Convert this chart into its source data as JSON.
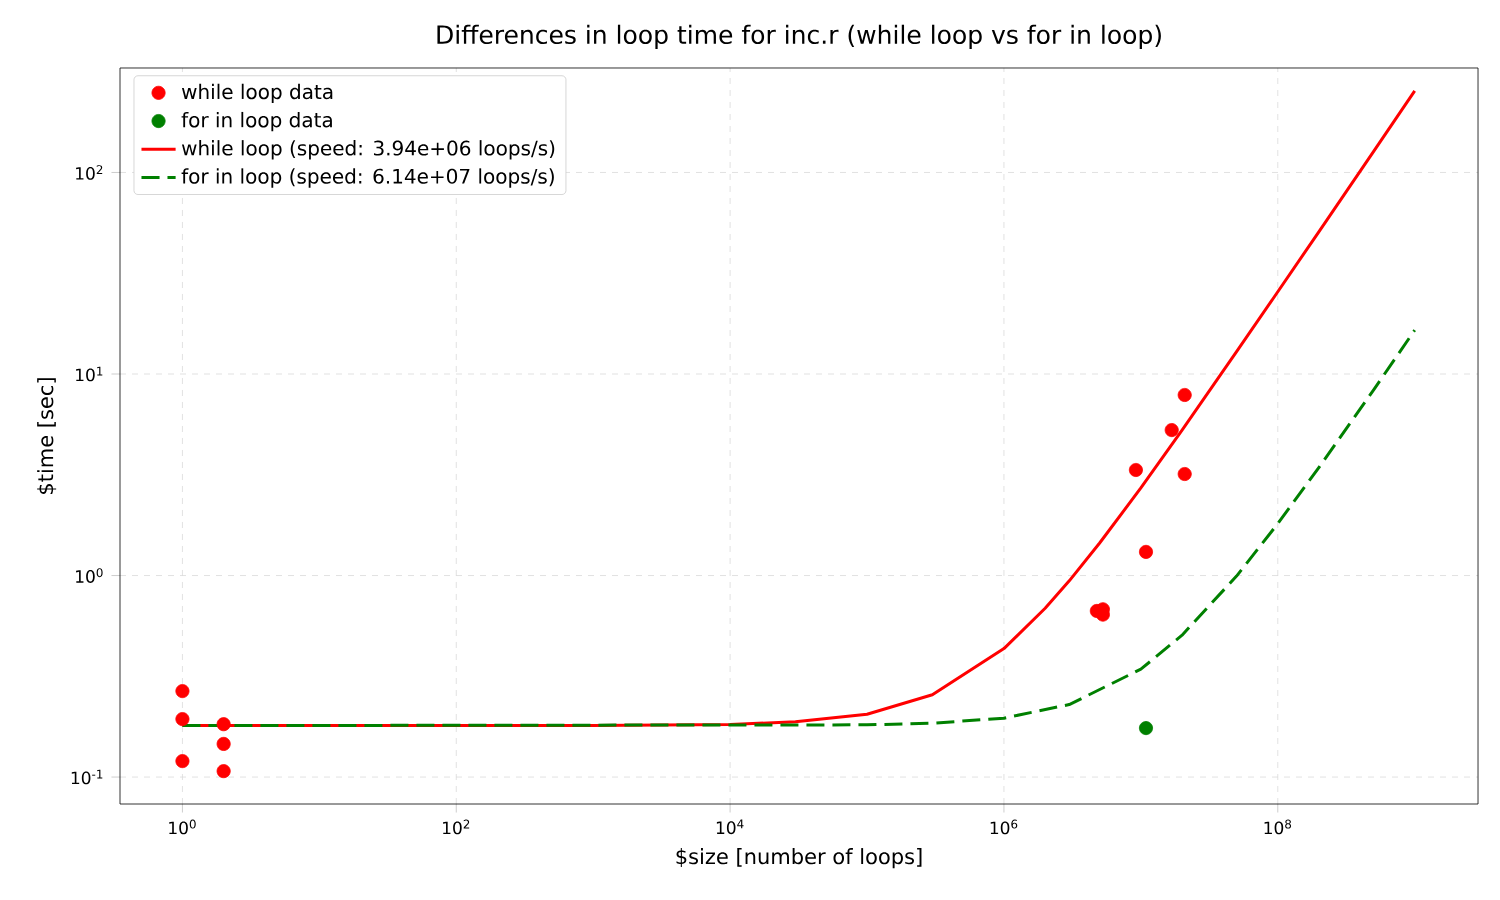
{
  "chart_data": {
    "type": "scatter",
    "title": "Differences in loop time for inc.r (while loop vs for in loop)",
    "xlabel": "$size [number of loops]",
    "ylabel": "$time [sec]",
    "log": "xy",
    "grid": true,
    "legend": "top left",
    "marker": "circle",
    "xlim": [
      0.35,
      2900000000
    ],
    "ylim": [
      0.0735,
      330
    ],
    "xticks": [
      {
        "value": 1,
        "label": "10$^{0}$"
      },
      {
        "value": 100,
        "label": "10$^{2}$"
      },
      {
        "value": 10000,
        "label": "10$^{4}$"
      },
      {
        "value": 1000000,
        "label": "10$^{6}$"
      },
      {
        "value": 100000000,
        "label": "10$^{8}$"
      }
    ],
    "yticks": [
      {
        "value": 0.1,
        "label": "10$^{-1}$"
      },
      {
        "value": 1,
        "label": "10$^{0}$"
      },
      {
        "value": 10,
        "label": "10$^{1}$"
      },
      {
        "value": 100,
        "label": "10$^{2}$"
      }
    ],
    "series": [
      {
        "name": "while loop data",
        "color": "#ff0000",
        "x": [
          1,
          1,
          1,
          2,
          2,
          2,
          4770000,
          5280000,
          5280000,
          9200000,
          10900000,
          16800000,
          20900000,
          20900000
        ],
        "values": [
          0.267,
          0.194,
          0.12,
          0.183,
          0.146,
          0.107,
          0.667,
          0.68,
          0.64,
          3.34,
          1.31,
          5.27,
          7.87,
          3.19
        ]
      },
      {
        "name": "for in loop data",
        "color": "#008000",
        "x": [
          10900000
        ],
        "values": [
          0.175
        ]
      },
      {
        "name": "while loop (speed: 3.94e+06 loops/s)",
        "type": "line",
        "color": "#ff0000",
        "line_style": "solid",
        "marker": "none",
        "x": [
          1,
          1000,
          10000,
          30000,
          100000,
          300000,
          1000000,
          2000000,
          3000000,
          5000000,
          10000000,
          20000000,
          50000000,
          100000000,
          200000000,
          500000000,
          1000000000
        ],
        "values": [
          0.18,
          0.18,
          0.1825,
          0.188,
          0.205,
          0.256,
          0.434,
          0.688,
          0.941,
          1.45,
          2.72,
          5.26,
          12.9,
          25.6,
          50.9,
          127,
          254
        ]
      },
      {
        "name": "for in loop (speed: 6.14e+07 loops/s)",
        "type": "line",
        "color": "#008000",
        "line_style": "dashed",
        "marker": "none",
        "x": [
          1,
          100000,
          300000,
          1000000,
          3000000,
          10000000,
          20000000,
          50000000,
          100000000,
          200000000,
          500000000,
          1000000000
        ],
        "values": [
          0.18,
          0.1816,
          0.185,
          0.196,
          0.229,
          0.343,
          0.506,
          0.994,
          1.81,
          3.44,
          8.32,
          16.5
        ]
      }
    ]
  }
}
